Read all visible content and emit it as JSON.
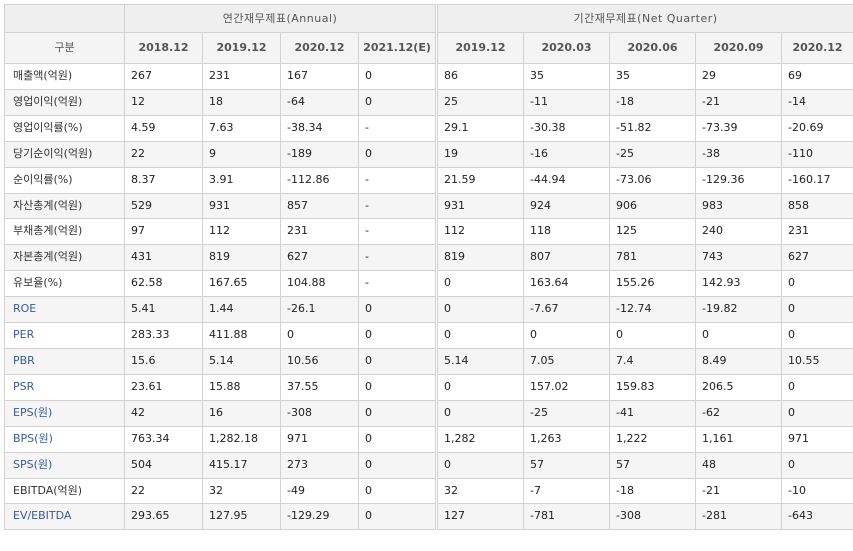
{
  "groups": {
    "annual": "연간재무제표(Annual)",
    "quarter": "기간재무제표(Net Quarter)"
  },
  "row_header_label": "구분",
  "annual_columns": [
    "2018.12",
    "2019.12",
    "2020.12",
    "2021.12(E)"
  ],
  "quarter_columns": [
    "2019.12",
    "2020.03",
    "2020.06",
    "2020.09",
    "2020.12"
  ],
  "rows": [
    {
      "label": "매출액(억원)",
      "blue": false,
      "annual": [
        "267",
        "231",
        "167",
        "0"
      ],
      "quarter": [
        "86",
        "35",
        "35",
        "29",
        "69"
      ]
    },
    {
      "label": "영업이익(억원)",
      "blue": false,
      "annual": [
        "12",
        "18",
        "-64",
        "0"
      ],
      "quarter": [
        "25",
        "-11",
        "-18",
        "-21",
        "-14"
      ]
    },
    {
      "label": "영업이익률(%)",
      "blue": false,
      "annual": [
        "4.59",
        "7.63",
        "-38.34",
        "-"
      ],
      "quarter": [
        "29.1",
        "-30.38",
        "-51.82",
        "-73.39",
        "-20.69"
      ]
    },
    {
      "label": "당기순이익(억원)",
      "blue": false,
      "annual": [
        "22",
        "9",
        "-189",
        "0"
      ],
      "quarter": [
        "19",
        "-16",
        "-25",
        "-38",
        "-110"
      ]
    },
    {
      "label": "순이익률(%)",
      "blue": false,
      "annual": [
        "8.37",
        "3.91",
        "-112.86",
        "-"
      ],
      "quarter": [
        "21.59",
        "-44.94",
        "-73.06",
        "-129.36",
        "-160.17"
      ]
    },
    {
      "label": "자산총계(억원)",
      "blue": false,
      "annual": [
        "529",
        "931",
        "857",
        "-"
      ],
      "quarter": [
        "931",
        "924",
        "906",
        "983",
        "858"
      ]
    },
    {
      "label": "부채총계(억원)",
      "blue": false,
      "annual": [
        "97",
        "112",
        "231",
        "-"
      ],
      "quarter": [
        "112",
        "118",
        "125",
        "240",
        "231"
      ]
    },
    {
      "label": "자본총계(억원)",
      "blue": false,
      "annual": [
        "431",
        "819",
        "627",
        "-"
      ],
      "quarter": [
        "819",
        "807",
        "781",
        "743",
        "627"
      ]
    },
    {
      "label": "유보율(%)",
      "blue": false,
      "annual": [
        "62.58",
        "167.65",
        "104.88",
        "-"
      ],
      "quarter": [
        "0",
        "163.64",
        "155.26",
        "142.93",
        "0"
      ]
    },
    {
      "label": "ROE",
      "blue": true,
      "annual": [
        "5.41",
        "1.44",
        "-26.1",
        "0"
      ],
      "quarter": [
        "0",
        "-7.67",
        "-12.74",
        "-19.82",
        "0"
      ]
    },
    {
      "label": "PER",
      "blue": true,
      "annual": [
        "283.33",
        "411.88",
        "0",
        "0"
      ],
      "quarter": [
        "0",
        "0",
        "0",
        "0",
        "0"
      ]
    },
    {
      "label": "PBR",
      "blue": true,
      "annual": [
        "15.6",
        "5.14",
        "10.56",
        "0"
      ],
      "quarter": [
        "5.14",
        "7.05",
        "7.4",
        "8.49",
        "10.55"
      ]
    },
    {
      "label": "PSR",
      "blue": true,
      "annual": [
        "23.61",
        "15.88",
        "37.55",
        "0"
      ],
      "quarter": [
        "0",
        "157.02",
        "159.83",
        "206.5",
        "0"
      ]
    },
    {
      "label": "EPS(원)",
      "blue": true,
      "annual": [
        "42",
        "16",
        "-308",
        "0"
      ],
      "quarter": [
        "0",
        "-25",
        "-41",
        "-62",
        "0"
      ]
    },
    {
      "label": "BPS(원)",
      "blue": true,
      "annual": [
        "763.34",
        "1,282.18",
        "971",
        "0"
      ],
      "quarter": [
        "1,282",
        "1,263",
        "1,222",
        "1,161",
        "971"
      ]
    },
    {
      "label": "SPS(원)",
      "blue": true,
      "annual": [
        "504",
        "415.17",
        "273",
        "0"
      ],
      "quarter": [
        "0",
        "57",
        "57",
        "48",
        "0"
      ]
    },
    {
      "label": "EBITDA(억원)",
      "blue": false,
      "annual": [
        "22",
        "32",
        "-49",
        "0"
      ],
      "quarter": [
        "32",
        "-7",
        "-18",
        "-21",
        "-10"
      ]
    },
    {
      "label": "EV/EBITDA",
      "blue": true,
      "annual": [
        "293.65",
        "127.95",
        "-129.29",
        "0"
      ],
      "quarter": [
        "127",
        "-781",
        "-308",
        "-281",
        "-643"
      ]
    }
  ],
  "colors": {
    "header_bg": "#efefef",
    "negative": "#d40000",
    "link_label": "#3a5a9a",
    "grid": "#d2d2d2"
  }
}
